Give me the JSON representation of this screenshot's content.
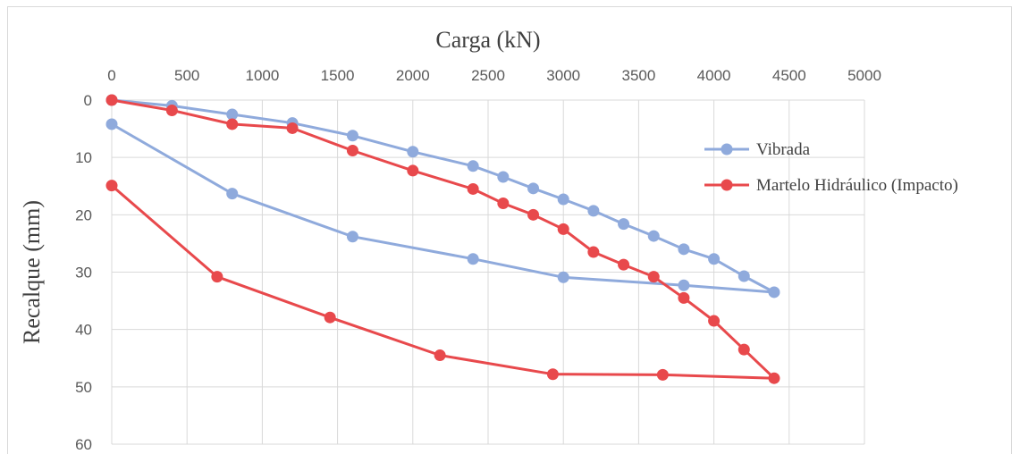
{
  "chart_data": {
    "type": "line",
    "xlabel": "Carga (kN)",
    "ylabel": "Recalque (mm)",
    "xlim": [
      0,
      5000
    ],
    "ylim": [
      0,
      60
    ],
    "x_ticks": [
      "0",
      "500",
      "1000",
      "1500",
      "2000",
      "2500",
      "3000",
      "3500",
      "4000",
      "4500",
      "5000"
    ],
    "y_ticks": [
      "0",
      "10",
      "20",
      "30",
      "40",
      "50",
      "60"
    ],
    "x_axis_position": "top",
    "y_axis_inverted": true,
    "grid": true,
    "legend_position": "right",
    "series": [
      {
        "name": "Vibrada",
        "color": "#8faadc",
        "points": [
          [
            0,
            0
          ],
          [
            400,
            1
          ],
          [
            800,
            2.5
          ],
          [
            1200,
            4
          ],
          [
            1600,
            6.2
          ],
          [
            2000,
            9
          ],
          [
            2400,
            11.5
          ],
          [
            2600,
            13.4
          ],
          [
            2800,
            15.4
          ],
          [
            3000,
            17.3
          ],
          [
            3200,
            19.3
          ],
          [
            3400,
            21.6
          ],
          [
            3600,
            23.7
          ],
          [
            3800,
            26
          ],
          [
            4000,
            27.7
          ],
          [
            4200,
            30.7
          ],
          [
            4400,
            33.5
          ],
          [
            3800,
            32.3
          ],
          [
            3000,
            30.9
          ],
          [
            2400,
            27.7
          ],
          [
            1600,
            23.8
          ],
          [
            800,
            16.3
          ],
          [
            0,
            4.2
          ]
        ]
      },
      {
        "name": "Martelo Hidráulico (Impacto)",
        "color": "#e8494c",
        "points": [
          [
            0,
            0
          ],
          [
            400,
            1.8
          ],
          [
            800,
            4.2
          ],
          [
            1200,
            4.9
          ],
          [
            1600,
            8.8
          ],
          [
            2000,
            12.3
          ],
          [
            2400,
            15.5
          ],
          [
            2600,
            18
          ],
          [
            2800,
            20
          ],
          [
            3000,
            22.5
          ],
          [
            3200,
            26.5
          ],
          [
            3400,
            28.7
          ],
          [
            3600,
            30.8
          ],
          [
            3800,
            34.5
          ],
          [
            4000,
            38.5
          ],
          [
            4200,
            43.5
          ],
          [
            4400,
            48.5
          ],
          [
            3660,
            47.9
          ],
          [
            2930,
            47.8
          ],
          [
            2180,
            44.5
          ],
          [
            1450,
            37.9
          ],
          [
            700,
            30.8
          ],
          [
            0,
            14.9
          ]
        ]
      }
    ]
  }
}
